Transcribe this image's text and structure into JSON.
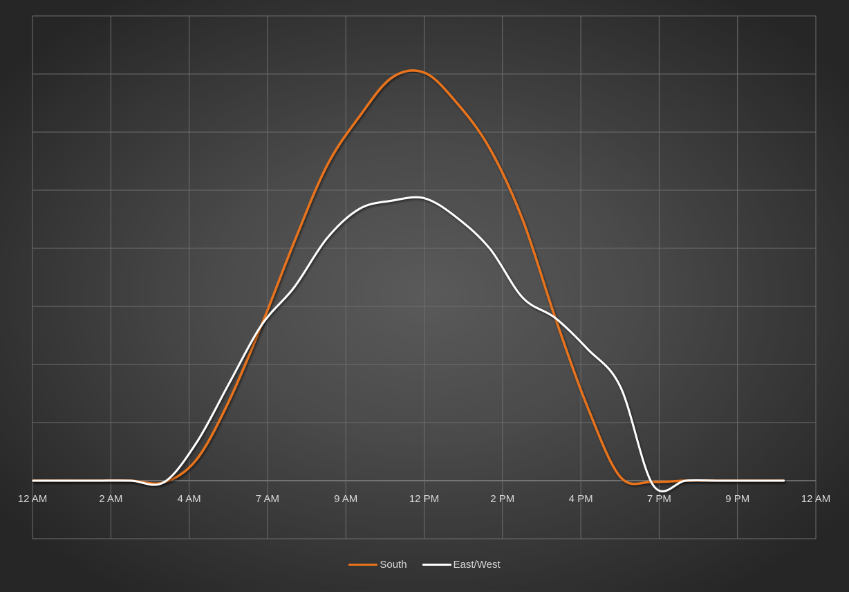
{
  "chart_data": {
    "type": "line",
    "title": "",
    "xlabel": "",
    "ylabel": "",
    "smooth": true,
    "grid": true,
    "legend_position": "bottom",
    "ylim": [
      0,
      8
    ],
    "y_tick_labels_visible": false,
    "x_tick_labels": [
      "12 AM",
      "2 AM",
      "4 AM",
      "7 AM",
      "9 AM",
      "12 PM",
      "2 PM",
      "4 PM",
      "7 PM",
      "9 PM",
      "12 AM"
    ],
    "x": [
      "0:00",
      "1:00",
      "2:00",
      "3:00",
      "4:00",
      "5:00",
      "6:00",
      "7:00",
      "8:00",
      "9:00",
      "10:00",
      "11:00",
      "12:00",
      "13:00",
      "14:00",
      "15:00",
      "16:00",
      "17:00",
      "18:00",
      "19:00",
      "20:00",
      "21:00",
      "22:00",
      "23:00"
    ],
    "series": [
      {
        "name": "South",
        "color": "#E8731A",
        "values": [
          0,
          0,
          0,
          0,
          -0.03,
          0.36,
          1.37,
          2.68,
          4.11,
          5.42,
          6.27,
          6.94,
          7.02,
          6.49,
          5.71,
          4.49,
          2.8,
          1.25,
          0.06,
          -0.02,
          0,
          0,
          0,
          0
        ]
      },
      {
        "name": "East/West",
        "color": "#FFFFFF",
        "values": [
          0,
          0,
          0,
          0,
          -0.03,
          0.65,
          1.67,
          2.68,
          3.33,
          4.17,
          4.68,
          4.82,
          4.86,
          4.52,
          3.99,
          3.15,
          2.8,
          2.26,
          1.61,
          -0.08,
          0,
          0,
          0,
          0
        ]
      }
    ]
  },
  "legend": {
    "items": [
      {
        "label": "South",
        "color": "#E8731A"
      },
      {
        "label": "East/West",
        "color": "#FFFFFF"
      }
    ]
  }
}
